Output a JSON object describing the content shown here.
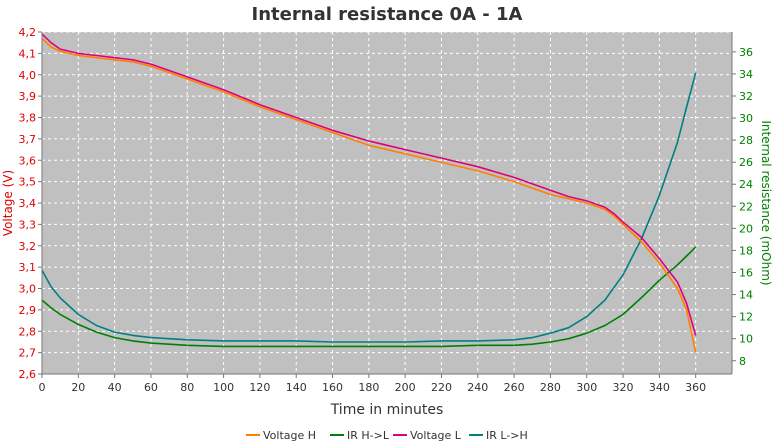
{
  "chart_data": {
    "type": "line",
    "title": "Internal resistance  0A - 1A",
    "xlabel": "Time in minutes",
    "ylabel_left": "Voltage (V)",
    "ylabel_right": "Internal resistance (mOhm)",
    "xlim": [
      0,
      380
    ],
    "ylim_left": [
      2.6,
      4.2
    ],
    "ylim_right": [
      6.8,
      37.8
    ],
    "x_ticks": [
      0,
      20,
      40,
      60,
      80,
      100,
      120,
      140,
      160,
      180,
      200,
      220,
      240,
      260,
      280,
      300,
      320,
      340,
      360
    ],
    "y_left_ticks": [
      "2,6",
      "2,7",
      "2,8",
      "2,9",
      "3,0",
      "3,1",
      "3,2",
      "3,3",
      "3,4",
      "3,5",
      "3,6",
      "3,7",
      "3,8",
      "3,9",
      "4,0",
      "4,1",
      "4,2"
    ],
    "y_right_ticks": [
      8,
      10,
      12,
      14,
      16,
      18,
      20,
      22,
      24,
      26,
      28,
      30,
      32,
      34,
      36
    ],
    "grid": true,
    "legend_position": "bottom",
    "series": [
      {
        "name": "Voltage H",
        "axis": "left",
        "color": "#ff8000",
        "x": [
          0,
          5,
          10,
          20,
          30,
          40,
          50,
          60,
          80,
          100,
          120,
          140,
          160,
          180,
          200,
          220,
          240,
          260,
          280,
          290,
          300,
          310,
          315,
          320,
          330,
          340,
          350,
          355,
          360
        ],
        "y": [
          4.17,
          4.13,
          4.11,
          4.09,
          4.08,
          4.07,
          4.06,
          4.04,
          3.98,
          3.92,
          3.85,
          3.79,
          3.73,
          3.67,
          3.63,
          3.59,
          3.55,
          3.5,
          3.44,
          3.42,
          3.4,
          3.37,
          3.34,
          3.3,
          3.22,
          3.12,
          3.0,
          2.9,
          2.7
        ]
      },
      {
        "name": "IR H->L",
        "axis": "right",
        "color": "#008000",
        "x": [
          0,
          5,
          10,
          20,
          30,
          40,
          50,
          60,
          80,
          100,
          120,
          140,
          160,
          180,
          200,
          220,
          240,
          260,
          270,
          280,
          290,
          300,
          310,
          320,
          330,
          340,
          350,
          355,
          360
        ],
        "y": [
          13.5,
          12.8,
          12.2,
          11.3,
          10.6,
          10.1,
          9.8,
          9.6,
          9.4,
          9.3,
          9.3,
          9.3,
          9.3,
          9.3,
          9.3,
          9.3,
          9.4,
          9.4,
          9.5,
          9.7,
          10.0,
          10.5,
          11.2,
          12.2,
          13.7,
          15.3,
          16.7,
          17.5,
          18.3
        ]
      },
      {
        "name": "Voltage L",
        "axis": "left",
        "color": "#e0007a",
        "x": [
          0,
          5,
          10,
          20,
          30,
          40,
          50,
          60,
          80,
          100,
          120,
          140,
          160,
          180,
          200,
          220,
          240,
          260,
          280,
          290,
          300,
          310,
          315,
          320,
          330,
          340,
          350,
          355,
          360
        ],
        "y": [
          4.19,
          4.15,
          4.12,
          4.1,
          4.09,
          4.08,
          4.07,
          4.05,
          3.99,
          3.93,
          3.86,
          3.8,
          3.74,
          3.69,
          3.65,
          3.61,
          3.57,
          3.52,
          3.46,
          3.43,
          3.41,
          3.38,
          3.35,
          3.31,
          3.24,
          3.14,
          3.03,
          2.93,
          2.78
        ]
      },
      {
        "name": "IR L->H",
        "axis": "right",
        "color": "#008080",
        "x": [
          0,
          5,
          10,
          20,
          30,
          40,
          50,
          60,
          80,
          100,
          120,
          140,
          160,
          180,
          200,
          220,
          240,
          260,
          270,
          280,
          290,
          300,
          310,
          320,
          330,
          340,
          350,
          355,
          360
        ],
        "y": [
          16.2,
          14.7,
          13.7,
          12.2,
          11.2,
          10.6,
          10.3,
          10.1,
          9.9,
          9.8,
          9.8,
          9.8,
          9.7,
          9.7,
          9.7,
          9.8,
          9.8,
          9.9,
          10.1,
          10.5,
          11.0,
          12.0,
          13.5,
          15.8,
          19.0,
          23.0,
          27.8,
          31.0,
          34.1
        ]
      }
    ]
  }
}
